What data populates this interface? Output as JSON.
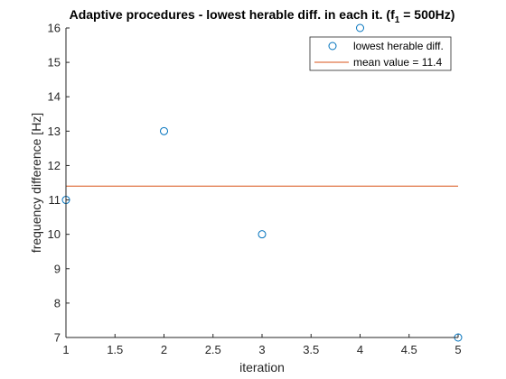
{
  "chart_data": {
    "type": "scatter",
    "title_main": "Adaptive procedures - lowest herable diff. in each it. (f",
    "title_sub": "1",
    "title_end": " = 500Hz)",
    "xlabel": "iteration",
    "ylabel": "frequency difference [Hz]",
    "xlim": [
      1,
      5
    ],
    "ylim": [
      7,
      16
    ],
    "xticks": [
      "1",
      "1.5",
      "2",
      "2.5",
      "3",
      "3.5",
      "4",
      "4.5",
      "5"
    ],
    "yticks": [
      "7",
      "8",
      "9",
      "10",
      "11",
      "12",
      "13",
      "14",
      "15",
      "16"
    ],
    "grid": false,
    "legend_position": "top-right",
    "series": [
      {
        "name": "lowest herable diff.",
        "marker": "circle",
        "color": "#0072bd",
        "points": [
          {
            "x": 1,
            "y": 11
          },
          {
            "x": 2,
            "y": 13
          },
          {
            "x": 3,
            "y": 10
          },
          {
            "x": 4,
            "y": 16
          },
          {
            "x": 5,
            "y": 7
          }
        ]
      },
      {
        "name": "mean value = 11.4",
        "marker": "line",
        "color": "#d95319",
        "points": [
          {
            "x": 1,
            "y": 11.4
          },
          {
            "x": 5,
            "y": 11.4
          }
        ]
      }
    ]
  }
}
